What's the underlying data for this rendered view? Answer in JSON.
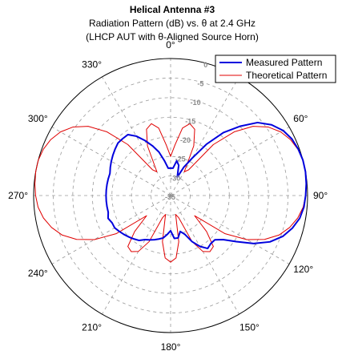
{
  "chart_data": {
    "type": "line",
    "projection": "polar",
    "title": "Helical Antenna #3",
    "subtitle_lines": [
      "Radiation Pattern (dB) vs. θ at 2.4 GHz",
      "(LHCP AUT with θ-Aligned Source Horn)"
    ],
    "theta_zero": "top",
    "theta_direction": "clockwise",
    "angle_ticks": [
      0,
      30,
      60,
      90,
      120,
      150,
      180,
      210,
      240,
      270,
      300,
      330
    ],
    "angle_tick_labels": [
      "0°",
      "30°",
      "60°",
      "90°",
      "120°",
      "150°",
      "180°",
      "210°",
      "240°",
      "270°",
      "300°",
      "330°"
    ],
    "r_min": -35,
    "r_max": 0,
    "r_ticks": [
      0,
      -5,
      -10,
      -15,
      -20,
      -25,
      -30,
      -35
    ],
    "r_tick_labels": [
      "0",
      "-5",
      "-10",
      "-15",
      "-20",
      "-25",
      "-30",
      "-35"
    ],
    "grid": true,
    "legend_position": "top-right",
    "theta": [
      0,
      5,
      10,
      15,
      20,
      25,
      30,
      35,
      40,
      45,
      50,
      55,
      60,
      65,
      70,
      75,
      80,
      85,
      90,
      95,
      100,
      105,
      110,
      115,
      120,
      125,
      130,
      135,
      140,
      145,
      150,
      155,
      160,
      165,
      170,
      175,
      180,
      185,
      190,
      195,
      200,
      205,
      210,
      215,
      220,
      225,
      230,
      235,
      240,
      245,
      250,
      255,
      260,
      265,
      270,
      275,
      280,
      285,
      290,
      295,
      300,
      305,
      310,
      315,
      320,
      325,
      330,
      335,
      340,
      345,
      350,
      355,
      360
    ],
    "series": [
      {
        "name": "Measured Pattern",
        "color": "#0000dd",
        "values": [
          -28,
          -28,
          -26,
          -27,
          -30,
          -27,
          -24,
          -19,
          -14,
          -10,
          -6,
          -3.5,
          -1.8,
          -0.8,
          -0.3,
          0,
          0,
          -0.2,
          -0.5,
          -0.8,
          -1.5,
          -2.8,
          -4.5,
          -7,
          -10.5,
          -14.5,
          -17.5,
          -19,
          -19,
          -18.5,
          -20,
          -22,
          -24.5,
          -25.5,
          -24,
          -24,
          -26,
          -25,
          -24,
          -23.5,
          -23,
          -22.5,
          -22,
          -21,
          -20.5,
          -20,
          -19.5,
          -19,
          -18.5,
          -18.5,
          -18,
          -18.5,
          -18.5,
          -18.5,
          -18.5,
          -18.5,
          -18.5,
          -18.5,
          -18.5,
          -18,
          -17.5,
          -17,
          -16.5,
          -16,
          -16,
          -16,
          -17.5,
          -19.5,
          -21.5,
          -23.5,
          -26,
          -28,
          -28
        ]
      },
      {
        "name": "Theoretical Pattern",
        "color": "#e00000",
        "values": [
          -25,
          -22,
          -17.5,
          -16,
          -17,
          -21,
          -28,
          -27,
          -18,
          -12,
          -7.5,
          -4.5,
          -2.5,
          -1.2,
          -0.4,
          0,
          0,
          -0.2,
          -0.5,
          -1,
          -2,
          -3.5,
          -5.5,
          -8.5,
          -12.5,
          -18,
          -27,
          -22,
          -18,
          -17.5,
          -18.5,
          -22,
          -29,
          -30,
          -23,
          -19,
          -18,
          -19,
          -23,
          -30,
          -29,
          -22,
          -18.5,
          -17.5,
          -18,
          -22,
          -27,
          -18,
          -12.5,
          -8.5,
          -5.5,
          -3.5,
          -2,
          -1,
          -0.5,
          -0.2,
          0,
          0,
          -0.4,
          -1.2,
          -2.5,
          -4.5,
          -7.5,
          -12,
          -18,
          -27,
          -28,
          -21,
          -17,
          -16,
          -17.5,
          -22,
          -25
        ]
      }
    ]
  }
}
